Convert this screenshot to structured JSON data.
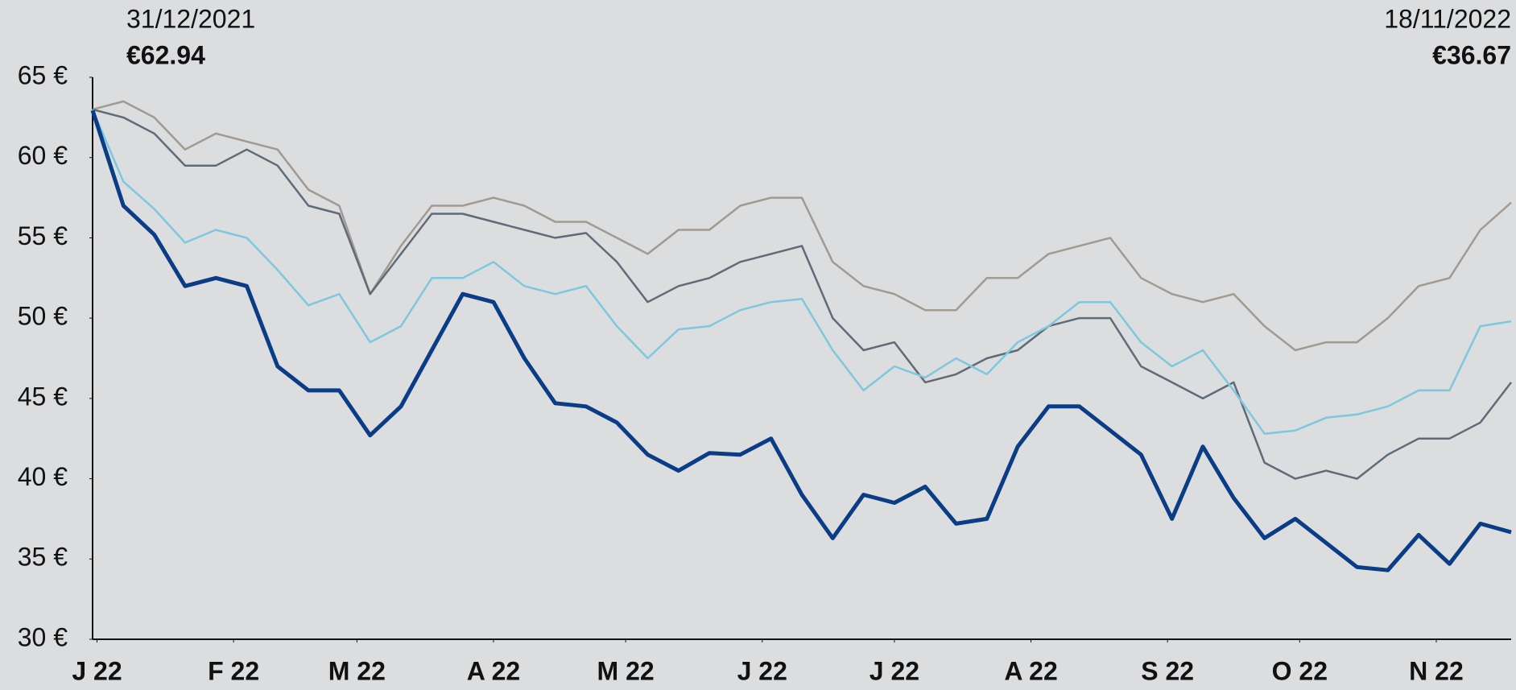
{
  "chart_data": {
    "type": "line",
    "annotations": {
      "start_date": "31/12/2021",
      "start_value": "€62.94",
      "end_date": "18/11/2022",
      "end_value": "€36.67"
    },
    "x": [
      0,
      7,
      14,
      21,
      28,
      35,
      42,
      49,
      56,
      63,
      70,
      77,
      84,
      91,
      98,
      105,
      112,
      119,
      126,
      133,
      140,
      147,
      154,
      161,
      168,
      175,
      182,
      189,
      196,
      203,
      210,
      217,
      224,
      231,
      238,
      245,
      252,
      259,
      266,
      273,
      280,
      287,
      294,
      301,
      308,
      315,
      322
    ],
    "xlim": [
      0,
      322
    ],
    "xticks": [
      {
        "value": 1,
        "label": "J 22"
      },
      {
        "value": 32,
        "label": "F 22"
      },
      {
        "value": 60,
        "label": "M 22"
      },
      {
        "value": 91,
        "label": "A 22"
      },
      {
        "value": 121,
        "label": "M 22"
      },
      {
        "value": 152,
        "label": "J 22"
      },
      {
        "value": 182,
        "label": "J 22"
      },
      {
        "value": 213,
        "label": "A 22"
      },
      {
        "value": 244,
        "label": "S 22"
      },
      {
        "value": 274,
        "label": "O 22"
      },
      {
        "value": 305,
        "label": "N 22"
      }
    ],
    "ylim": [
      30,
      65
    ],
    "yticks": [
      {
        "value": 30,
        "label": "30 €"
      },
      {
        "value": 35,
        "label": "35 €"
      },
      {
        "value": 40,
        "label": "40 €"
      },
      {
        "value": 45,
        "label": "45 €"
      },
      {
        "value": 50,
        "label": "50 €"
      },
      {
        "value": 55,
        "label": "55 €"
      },
      {
        "value": 60,
        "label": "60 €"
      },
      {
        "value": 65,
        "label": "65 €"
      }
    ],
    "grid": false,
    "series": [
      {
        "color": "#a09a90",
        "width": 2.5,
        "values": [
          63,
          63.5,
          62.5,
          60.5,
          61.5,
          61,
          60.5,
          58,
          57,
          51.5,
          54.5,
          57,
          57,
          57.5,
          57,
          56,
          56,
          55,
          54,
          55.5,
          55.5,
          57,
          57.5,
          57.5,
          53.5,
          52,
          51.5,
          50.5,
          50.5,
          52.5,
          52.5,
          54,
          54.5,
          55,
          52.5,
          51.5,
          51,
          51.5,
          49.5,
          48,
          48.5,
          48.5,
          50,
          52,
          52.5,
          55.5,
          57.2
        ]
      },
      {
        "color": "#5f6b78",
        "width": 2.5,
        "values": [
          63,
          62.5,
          61.5,
          59.5,
          59.5,
          60.5,
          59.5,
          57,
          56.5,
          51.5,
          54,
          56.5,
          56.5,
          56,
          55.5,
          55,
          55.3,
          53.5,
          51,
          52,
          52.5,
          53.5,
          54,
          54.5,
          50,
          48,
          48.5,
          46,
          46.5,
          47.5,
          48,
          49.5,
          50,
          50,
          47,
          46,
          45,
          46,
          41,
          40,
          40.5,
          40,
          41.5,
          42.5,
          42.5,
          43.5,
          46
        ]
      },
      {
        "color": "#7ec8dd",
        "width": 2.5,
        "values": [
          63,
          58.5,
          56.8,
          54.7,
          55.5,
          55,
          53,
          50.8,
          51.5,
          48.5,
          49.5,
          52.5,
          52.5,
          53.5,
          52,
          51.5,
          52,
          49.5,
          47.5,
          49.3,
          49.5,
          50.5,
          51,
          51.2,
          48,
          45.5,
          47,
          46.3,
          47.5,
          46.5,
          48.5,
          49.5,
          51,
          51,
          48.5,
          47,
          48,
          45.5,
          42.8,
          43,
          43.8,
          44,
          44.5,
          45.5,
          45.5,
          49.5,
          49.8
        ]
      },
      {
        "color": "#0a3d85",
        "width": 5,
        "values": [
          62.94,
          57,
          55.2,
          52,
          52.5,
          52,
          47,
          45.5,
          45.5,
          42.7,
          44.5,
          48,
          51.5,
          51,
          47.5,
          44.7,
          44.5,
          43.5,
          41.5,
          40.5,
          41.6,
          41.5,
          42.5,
          39,
          36.3,
          39,
          38.5,
          39.5,
          37.2,
          37.5,
          42,
          44.5,
          44.5,
          43,
          41.5,
          37.5,
          42,
          38.8,
          36.3,
          37.5,
          36,
          34.5,
          34.3,
          36.5,
          34.7,
          37.2,
          36.67
        ]
      }
    ]
  }
}
